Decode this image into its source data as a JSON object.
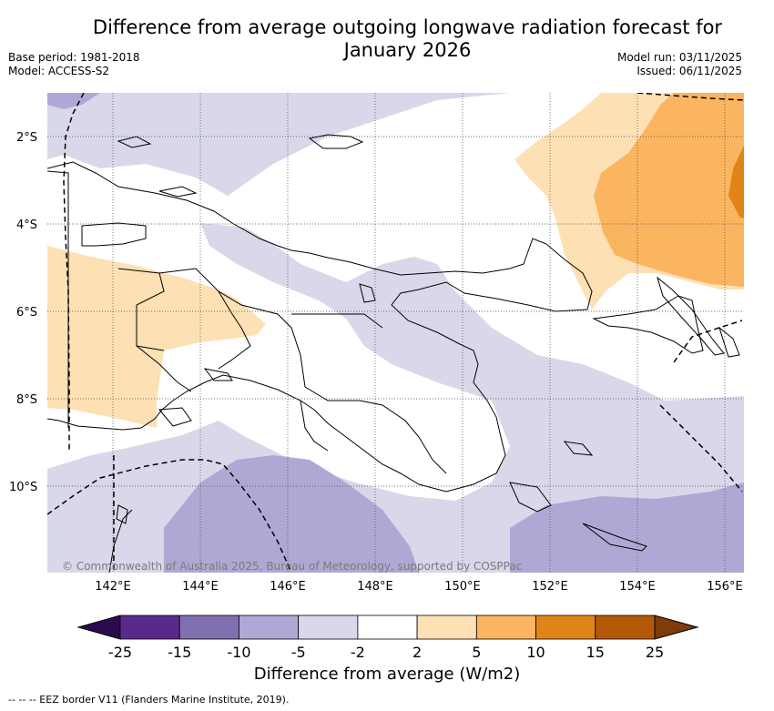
{
  "title_line1": "Difference from average outgoing longwave radiation forecast for",
  "title_line2": "January 2026",
  "base_period": "Base period: 1981-2018",
  "model": "Model: ACCESS-S2",
  "model_run": "Model run: 03/11/2025",
  "issued": "Issued: 06/11/2025",
  "lat_ticks": [
    "2°S",
    "4°S",
    "6°S",
    "8°S",
    "10°S"
  ],
  "lon_ticks": [
    "142°E",
    "144°E",
    "146°E",
    "148°E",
    "150°E",
    "152°E",
    "154°E",
    "156°E"
  ],
  "credit": "© Commonwealth of Australia 2025, Bureau of Meteorology, supported by COSPPac",
  "colorbar": {
    "ticks": [
      "-25",
      "-15",
      "-10",
      "-5",
      "-2",
      "2",
      "5",
      "10",
      "15",
      "25"
    ],
    "colors": [
      "#2d0a4e",
      "#5a2a8a",
      "#8070b0",
      "#b0a8d4",
      "#d8d8ea",
      "#ffffff",
      "#fde0b4",
      "#fbb560",
      "#e08418",
      "#b35806",
      "#7f3b08"
    ],
    "label": "Difference from average (W/m2)"
  },
  "legend_footnote": "--  --  -- EEZ border V11 (Flanders Marine Institute, 2019)."
}
